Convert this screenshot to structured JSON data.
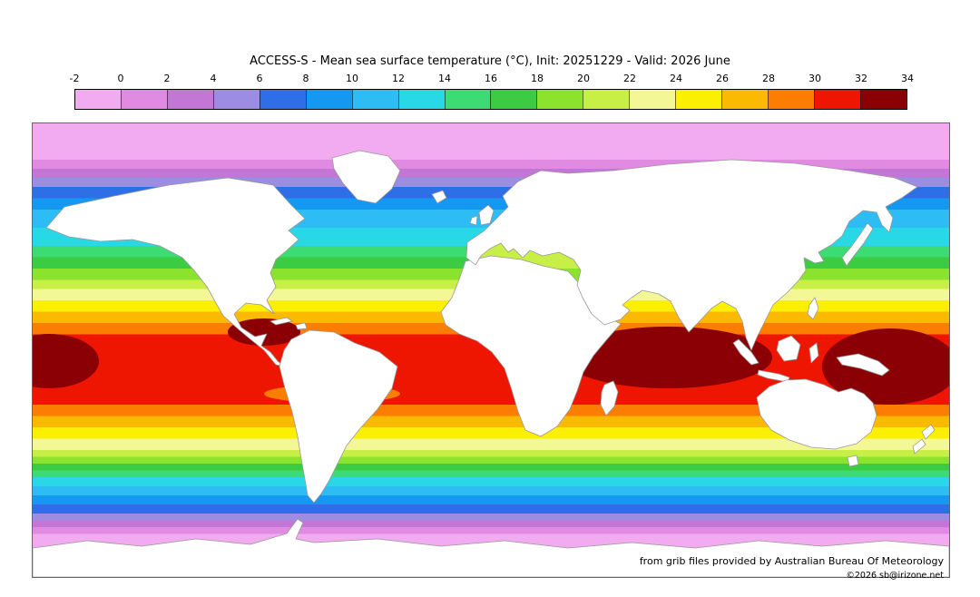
{
  "header": {
    "title": "ACCESS-S - Mean sea surface temperature (°C), Init: 20251229 - Valid: 2026 June"
  },
  "colorbar": {
    "ticks": [
      "-2",
      "0",
      "2",
      "4",
      "6",
      "8",
      "10",
      "12",
      "14",
      "16",
      "18",
      "20",
      "22",
      "24",
      "26",
      "28",
      "30",
      "32",
      "34"
    ],
    "segment_colors": [
      "#f2aaf0",
      "#e18ae2",
      "#c476d6",
      "#9c8ce2",
      "#2e6ee6",
      "#1498f2",
      "#2ebcf4",
      "#28d8e6",
      "#3cdb74",
      "#3ccc44",
      "#8ce32e",
      "#c8ef46",
      "#f4f795",
      "#fbf002",
      "#fbb901",
      "#fb7d01",
      "#ee1501",
      "#8b0005"
    ],
    "unit": "°C"
  },
  "footer": {
    "credit_line": "from grib files provided by Australian Bureau Of Meteorology",
    "copyright_line": "©2026 sb@irizone.net"
  },
  "chart_data": {
    "type": "heatmap",
    "title": "ACCESS-S - Mean sea surface temperature (°C), Init: 20251229 - Valid: 2026 June",
    "model": "ACCESS-S",
    "variable": "Mean sea surface temperature",
    "unit": "°C",
    "init": "20251229",
    "valid": "2026 June",
    "value_range": [
      -2,
      34
    ],
    "colorbar_ticks": [
      -2,
      0,
      2,
      4,
      6,
      8,
      10,
      12,
      14,
      16,
      18,
      20,
      22,
      24,
      26,
      28,
      30,
      32,
      34
    ],
    "colorbar_colors": [
      "#f2aaf0",
      "#e18ae2",
      "#c476d6",
      "#9c8ce2",
      "#2e6ee6",
      "#1498f2",
      "#2ebcf4",
      "#28d8e6",
      "#3cdb74",
      "#3ccc44",
      "#8ce32e",
      "#c8ef46",
      "#f4f795",
      "#fbf002",
      "#fbb901",
      "#fb7d01",
      "#ee1501",
      "#8b0005"
    ],
    "pattern": "Latitudinal SST bands from below 0°C (pink) at both poles to 30-32°C (red) along the tropics; warmest water above 32°C (dark red) in the equatorial Indian Ocean, western Pacific warm pool and Caribbean; land shown white."
  }
}
